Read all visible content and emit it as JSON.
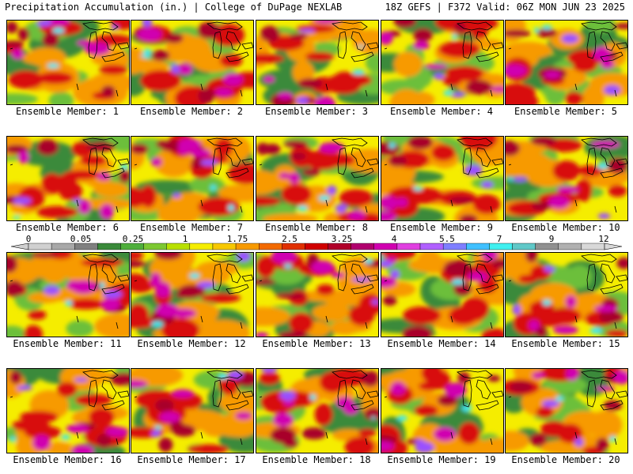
{
  "header": {
    "left_title": "Precipitation Accumulation (in.) | College of DuPage NEXLAB",
    "right_title": "18Z GEFS | F372 Valid: 06Z MON JUN 23 2025"
  },
  "panels": [
    {
      "label": "Ensemble Member: 1"
    },
    {
      "label": "Ensemble Member: 2"
    },
    {
      "label": "Ensemble Member: 3"
    },
    {
      "label": "Ensemble Member: 4"
    },
    {
      "label": "Ensemble Member: 5"
    },
    {
      "label": "Ensemble Member: 6"
    },
    {
      "label": "Ensemble Member: 7"
    },
    {
      "label": "Ensemble Member: 8"
    },
    {
      "label": "Ensemble Member: 9"
    },
    {
      "label": "Ensemble Member: 10"
    },
    {
      "label": "Ensemble Member: 11"
    },
    {
      "label": "Ensemble Member: 12"
    },
    {
      "label": "Ensemble Member: 13"
    },
    {
      "label": "Ensemble Member: 14"
    },
    {
      "label": "Ensemble Member: 15"
    },
    {
      "label": "Ensemble Member: 16"
    },
    {
      "label": "Ensemble Member: 17"
    },
    {
      "label": "Ensemble Member: 18"
    },
    {
      "label": "Ensemble Member: 19"
    },
    {
      "label": "Ensemble Member: 20"
    }
  ],
  "legend": {
    "tick_labels": [
      "0",
      "0.05",
      "0.25",
      "1",
      "1.75",
      "2.5",
      "3.25",
      "4",
      "5.5",
      "7",
      "9",
      "12"
    ],
    "colors": [
      "#d0d0d0",
      "#a8a8a8",
      "#808080",
      "#3a8a3a",
      "#4fae3c",
      "#7dc832",
      "#b8e000",
      "#f5ed00",
      "#f7c800",
      "#f79a00",
      "#f26a00",
      "#e03000",
      "#d00000",
      "#b0002a",
      "#b0006e",
      "#d000b0",
      "#e040e0",
      "#b060ff",
      "#7f7fff",
      "#40c0ff",
      "#40f0f0",
      "#60c8c8",
      "#909090",
      "#b0b0b0",
      "#d8d8d8"
    ]
  },
  "map_palette": {
    "dark_green": "#3a8a3a",
    "green": "#6cbf3a",
    "yellow": "#f5ed00",
    "orange": "#f79a00",
    "red": "#d81010",
    "dark_red": "#a8002a",
    "magenta": "#d000b0",
    "violet": "#9a50ff",
    "cyan": "#40e8f0",
    "gray": "#909090"
  }
}
